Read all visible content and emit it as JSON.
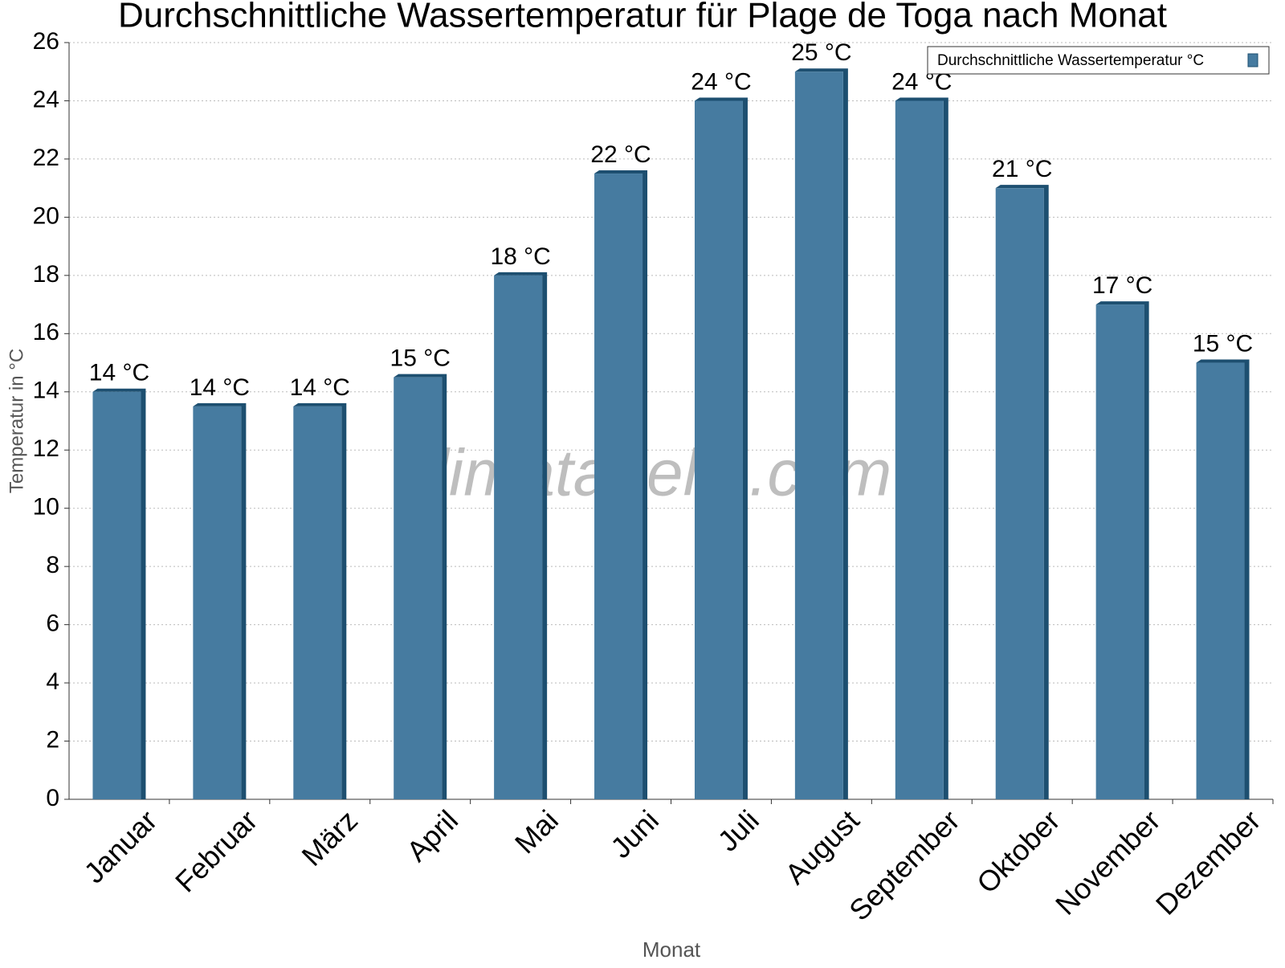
{
  "chart_data": {
    "type": "bar",
    "title": "Durchschnittliche Wassertemperatur für Plage de Toga nach Monat",
    "x_label": "Monat",
    "y_label": "Temperatur in °C",
    "watermark": "klimatabelle.com",
    "categories": [
      "Januar",
      "Februar",
      "März",
      "April",
      "Mai",
      "Juni",
      "Juli",
      "August",
      "September",
      "Oktober",
      "November",
      "Dezember"
    ],
    "series": [
      {
        "name": "Durchschnittliche Wassertemperatur °C",
        "color": "#467ba0",
        "values": [
          14,
          13.5,
          13.5,
          14.5,
          18,
          21.5,
          24,
          25,
          24,
          21,
          17,
          15
        ],
        "value_labels": [
          "14 °C",
          "14 °C",
          "14 °C",
          "15 °C",
          "18 °C",
          "22 °C",
          "24 °C",
          "25 °C",
          "24 °C",
          "21 °C",
          "17 °C",
          "15 °C"
        ]
      }
    ],
    "ylim": [
      0,
      26
    ],
    "yticks": [
      0,
      2,
      4,
      6,
      8,
      10,
      12,
      14,
      16,
      18,
      20,
      22,
      24,
      26
    ],
    "grid": true,
    "legend": "top-right"
  }
}
